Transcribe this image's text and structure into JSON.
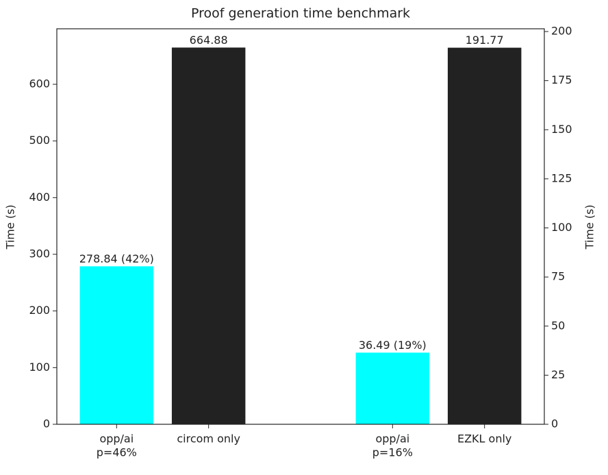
{
  "chart_data": {
    "type": "bar",
    "title": "Proof generation time benchmark",
    "categories": [
      [
        "opp/ai",
        "p=46%"
      ],
      [
        "circom only"
      ],
      [
        "opp/ai",
        "p=16%"
      ],
      [
        "EZKL only"
      ]
    ],
    "values": [
      278.84,
      664.88,
      36.49,
      191.77
    ],
    "value_labels": [
      "278.84 (42%)",
      "664.88",
      "36.49 (19%)",
      "191.77"
    ],
    "axes": [
      "y",
      "y",
      "y2",
      "y2"
    ],
    "colors": [
      "#00ffff",
      "#222222",
      "#00ffff",
      "#222222"
    ],
    "ylabel": "Time (s)",
    "y2label": "Time (s)",
    "ylim": [
      0,
      698
    ],
    "yticks": [
      0,
      100,
      200,
      300,
      400,
      500,
      600
    ],
    "y2lim": [
      0,
      201.4
    ],
    "y2ticks": [
      0,
      25,
      50,
      75,
      100,
      125,
      150,
      175,
      200
    ]
  }
}
